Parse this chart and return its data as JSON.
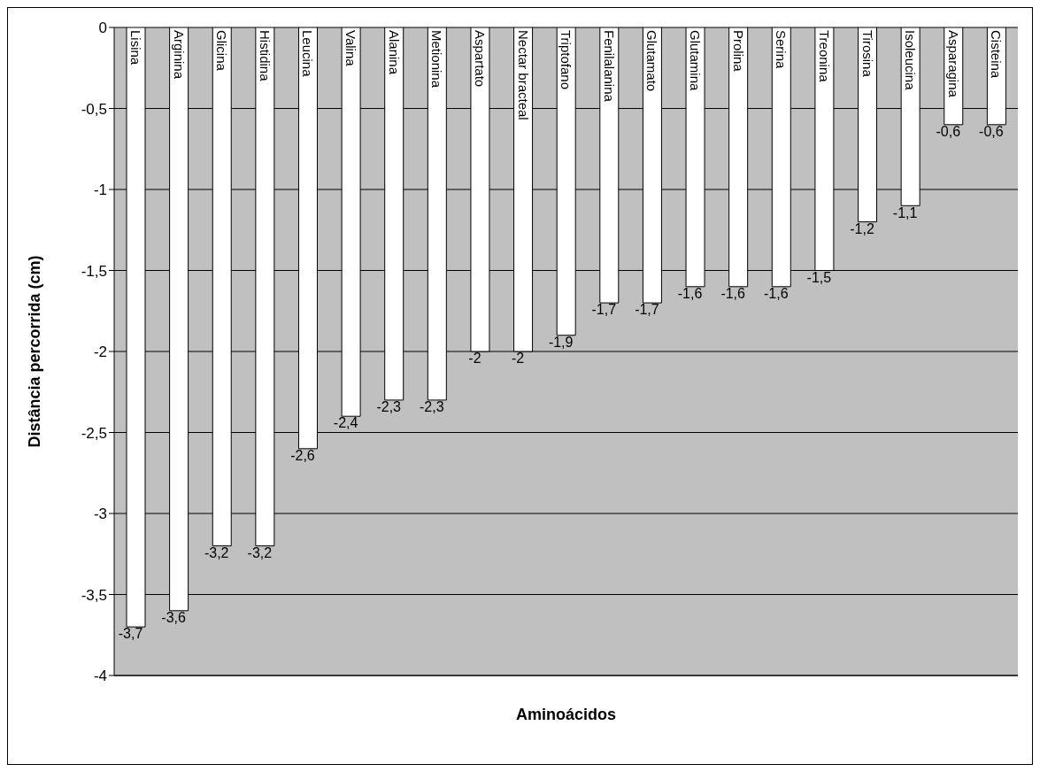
{
  "chart_data": {
    "type": "bar",
    "xlabel": "Aminoácidos",
    "ylabel": "Distância percorrida (cm)",
    "categories": [
      "Lisina",
      "Arginina",
      "Glicina",
      "Histidina",
      "Leucina",
      "Valina",
      "Alanina",
      "Metionina",
      "Aspartato",
      "Nectar bracteal",
      "Triptofano",
      "Fenilalanina",
      "Glutamato",
      "Glutamina",
      "Prolina",
      "Serina",
      "Treonina",
      "Tirosina",
      "Isoleucina",
      "Asparagina",
      "Cisteina"
    ],
    "values": [
      -3.7,
      -3.6,
      -3.2,
      -3.2,
      -2.6,
      -2.4,
      -2.3,
      -2.3,
      -2,
      -2,
      -1.9,
      -1.7,
      -1.7,
      -1.6,
      -1.6,
      -1.6,
      -1.5,
      -1.2,
      -1.1,
      -0.6,
      -0.6
    ],
    "value_labels": [
      "-3,7",
      "-3,6",
      "-3,2",
      "-3,2",
      "-2,6",
      "-2,4",
      "-2,3",
      "-2,3",
      "-2",
      "-2",
      "-1,9",
      "-1,7",
      "-1,7",
      "-1,6",
      "-1,6",
      "-1,6",
      "-1,5",
      "-1,2",
      "-1,1",
      "-0,6",
      "-0,6"
    ],
    "color": "#ffffff",
    "ylim": [
      -4,
      0
    ],
    "yticks": [
      {
        "value": -4,
        "label": "-4"
      },
      {
        "value": -3.5,
        "label": "-3,5"
      },
      {
        "value": -3,
        "label": "-3"
      },
      {
        "value": -2.5,
        "label": "-2,5"
      },
      {
        "value": -2,
        "label": "-2"
      },
      {
        "value": -1.5,
        "label": "-1,5"
      },
      {
        "value": -1,
        "label": "-1"
      },
      {
        "value": -0.5,
        "label": "-0,5"
      },
      {
        "value": 0,
        "label": "0"
      }
    ],
    "grid": "y",
    "tick_labels": "y"
  }
}
